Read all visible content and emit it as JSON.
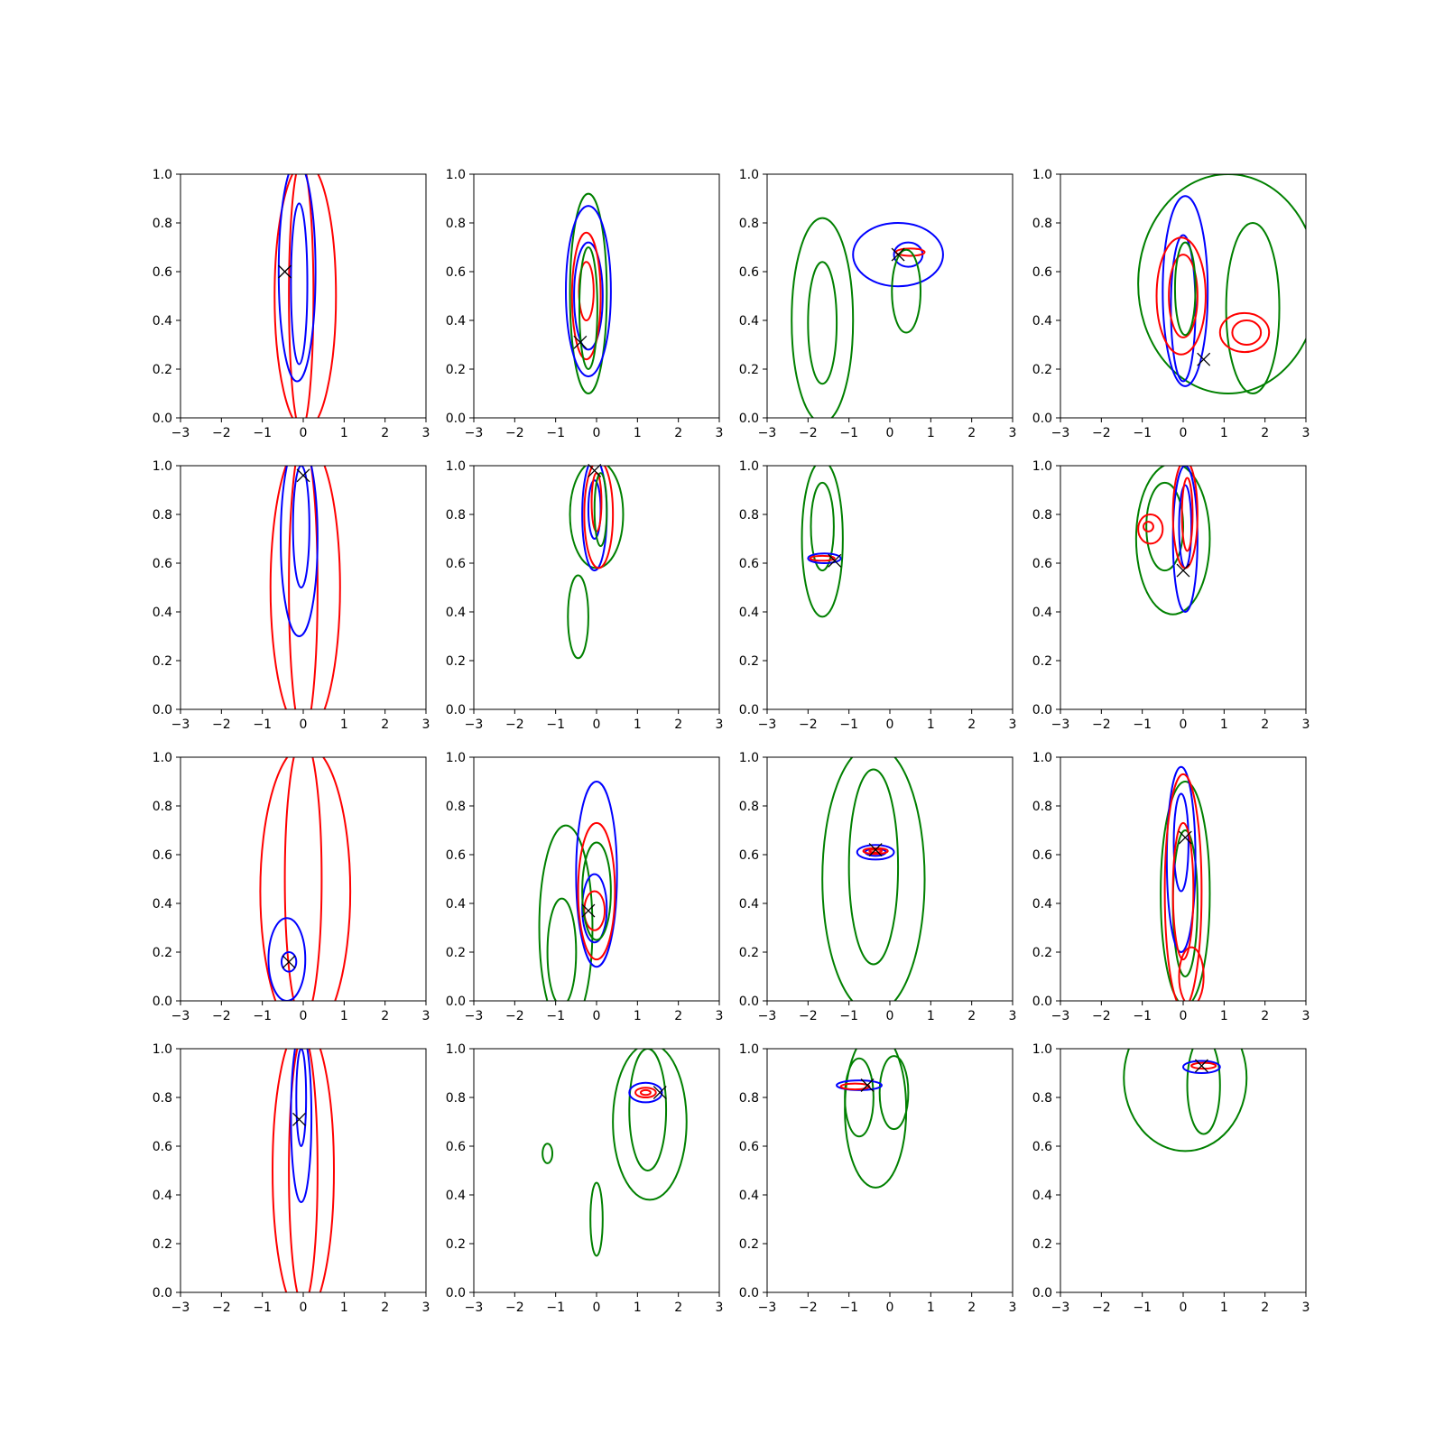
{
  "figure": {
    "grid": {
      "rows": 4,
      "cols": 4
    },
    "colors": {
      "red": "#ff0000",
      "blue": "#0000ff",
      "green": "#008000",
      "marker": "#000000",
      "axes": "#000000",
      "background": "#ffffff"
    },
    "axis_style": {
      "x_ticks": [
        "−3",
        "−2",
        "−1",
        "0",
        "1",
        "2",
        "3"
      ],
      "y_ticks": [
        "0.0",
        "0.2",
        "0.4",
        "0.6",
        "0.8",
        "1.0"
      ],
      "xlim": [
        -3,
        3
      ],
      "ylim": [
        0,
        1
      ],
      "grid": false
    }
  },
  "chart_data": [
    {
      "type": "contour",
      "xlim": [
        -3,
        3
      ],
      "ylim": [
        0,
        1
      ],
      "marker": [
        -0.45,
        0.6
      ],
      "contours": [
        {
          "color": "red",
          "cx": 0.05,
          "cy": 0.5,
          "rx": 0.75,
          "ry": 0.55
        },
        {
          "color": "red",
          "cx": -0.05,
          "cy": 0.5,
          "rx": 0.3,
          "ry": 0.55
        },
        {
          "color": "blue",
          "cx": -0.15,
          "cy": 0.6,
          "rx": 0.45,
          "ry": 0.45
        },
        {
          "color": "blue",
          "cx": -0.1,
          "cy": 0.55,
          "rx": 0.2,
          "ry": 0.33
        }
      ]
    },
    {
      "type": "contour",
      "xlim": [
        -3,
        3
      ],
      "ylim": [
        0,
        1
      ],
      "marker": [
        -0.4,
        0.31
      ],
      "contours": [
        {
          "color": "green",
          "cx": -0.2,
          "cy": 0.51,
          "rx": 0.45,
          "ry": 0.41
        },
        {
          "color": "blue",
          "cx": -0.2,
          "cy": 0.52,
          "rx": 0.55,
          "ry": 0.35
        },
        {
          "color": "blue",
          "cx": -0.2,
          "cy": 0.5,
          "rx": 0.35,
          "ry": 0.22
        },
        {
          "color": "red",
          "cx": -0.25,
          "cy": 0.5,
          "rx": 0.35,
          "ry": 0.26
        },
        {
          "color": "red",
          "cx": -0.25,
          "cy": 0.52,
          "rx": 0.18,
          "ry": 0.12
        },
        {
          "color": "green",
          "cx": -0.2,
          "cy": 0.45,
          "rx": 0.22,
          "ry": 0.25
        }
      ]
    },
    {
      "type": "contour",
      "xlim": [
        -3,
        3
      ],
      "ylim": [
        0,
        1
      ],
      "marker": [
        0.2,
        0.67
      ],
      "contours": [
        {
          "color": "green",
          "cx": -1.65,
          "cy": 0.4,
          "rx": 0.75,
          "ry": 0.42
        },
        {
          "color": "green",
          "cx": -1.65,
          "cy": 0.39,
          "rx": 0.35,
          "ry": 0.25
        },
        {
          "color": "blue",
          "cx": 0.2,
          "cy": 0.67,
          "rx": 1.1,
          "ry": 0.13
        },
        {
          "color": "blue",
          "cx": 0.45,
          "cy": 0.67,
          "rx": 0.35,
          "ry": 0.05
        },
        {
          "color": "red",
          "cx": 0.5,
          "cy": 0.68,
          "rx": 0.35,
          "ry": 0.015
        },
        {
          "color": "green",
          "cx": 0.4,
          "cy": 0.52,
          "rx": 0.35,
          "ry": 0.17
        }
      ]
    },
    {
      "type": "contour",
      "xlim": [
        -3,
        3
      ],
      "ylim": [
        0,
        1
      ],
      "marker": [
        0.5,
        0.24
      ],
      "contours": [
        {
          "color": "green",
          "cx": 1.1,
          "cy": 0.55,
          "rx": 2.2,
          "ry": 0.45
        },
        {
          "color": "green",
          "cx": 1.7,
          "cy": 0.45,
          "rx": 0.65,
          "ry": 0.35
        },
        {
          "color": "blue",
          "cx": 0.05,
          "cy": 0.52,
          "rx": 0.55,
          "ry": 0.39
        },
        {
          "color": "blue",
          "cx": 0.0,
          "cy": 0.45,
          "rx": 0.3,
          "ry": 0.3
        },
        {
          "color": "red",
          "cx": -0.05,
          "cy": 0.5,
          "rx": 0.6,
          "ry": 0.24
        },
        {
          "color": "red",
          "cx": 0.0,
          "cy": 0.5,
          "rx": 0.35,
          "ry": 0.17
        },
        {
          "color": "red",
          "cx": 1.5,
          "cy": 0.35,
          "rx": 0.6,
          "ry": 0.08
        },
        {
          "color": "red",
          "cx": 1.55,
          "cy": 0.35,
          "rx": 0.35,
          "ry": 0.05
        },
        {
          "color": "green",
          "cx": 0.05,
          "cy": 0.53,
          "rx": 0.25,
          "ry": 0.19
        }
      ]
    },
    {
      "type": "contour",
      "xlim": [
        -3,
        3
      ],
      "ylim": [
        0,
        1
      ],
      "marker": [
        0.0,
        0.96
      ],
      "contours": [
        {
          "color": "red",
          "cx": 0.05,
          "cy": 0.5,
          "rx": 0.85,
          "ry": 0.6
        },
        {
          "color": "red",
          "cx": 0.0,
          "cy": 0.5,
          "rx": 0.35,
          "ry": 0.6
        },
        {
          "color": "blue",
          "cx": -0.1,
          "cy": 0.7,
          "rx": 0.45,
          "ry": 0.4
        },
        {
          "color": "blue",
          "cx": -0.05,
          "cy": 0.75,
          "rx": 0.2,
          "ry": 0.25
        }
      ]
    },
    {
      "type": "contour",
      "xlim": [
        -3,
        3
      ],
      "ylim": [
        0,
        1
      ],
      "marker": [
        -0.05,
        0.98
      ],
      "contours": [
        {
          "color": "green",
          "cx": 0.0,
          "cy": 0.8,
          "rx": 0.65,
          "ry": 0.22
        },
        {
          "color": "green",
          "cx": -0.45,
          "cy": 0.38,
          "rx": 0.25,
          "ry": 0.17
        },
        {
          "color": "blue",
          "cx": -0.05,
          "cy": 0.8,
          "rx": 0.3,
          "ry": 0.23
        },
        {
          "color": "blue",
          "cx": -0.05,
          "cy": 0.82,
          "rx": 0.15,
          "ry": 0.12
        },
        {
          "color": "red",
          "cx": 0.05,
          "cy": 0.8,
          "rx": 0.35,
          "ry": 0.22
        },
        {
          "color": "red",
          "cx": 0.0,
          "cy": 0.85,
          "rx": 0.12,
          "ry": 0.12
        },
        {
          "color": "green",
          "cx": 0.1,
          "cy": 0.82,
          "rx": 0.15,
          "ry": 0.15
        }
      ]
    },
    {
      "type": "contour",
      "xlim": [
        -3,
        3
      ],
      "ylim": [
        0,
        1
      ],
      "marker": [
        -1.35,
        0.61
      ],
      "contours": [
        {
          "color": "green",
          "cx": -1.65,
          "cy": 0.7,
          "rx": 0.5,
          "ry": 0.32
        },
        {
          "color": "green",
          "cx": -1.65,
          "cy": 0.75,
          "rx": 0.28,
          "ry": 0.18
        },
        {
          "color": "blue",
          "cx": -1.6,
          "cy": 0.62,
          "rx": 0.4,
          "ry": 0.02
        },
        {
          "color": "red",
          "cx": -1.65,
          "cy": 0.62,
          "rx": 0.3,
          "ry": 0.01
        }
      ]
    },
    {
      "type": "contour",
      "xlim": [
        -3,
        3
      ],
      "ylim": [
        0,
        1
      ],
      "marker": [
        0.0,
        0.57
      ],
      "contours": [
        {
          "color": "green",
          "cx": -0.25,
          "cy": 0.7,
          "rx": 0.9,
          "ry": 0.31
        },
        {
          "color": "green",
          "cx": -0.45,
          "cy": 0.75,
          "rx": 0.45,
          "ry": 0.18
        },
        {
          "color": "blue",
          "cx": 0.05,
          "cy": 0.7,
          "rx": 0.3,
          "ry": 0.3
        },
        {
          "color": "blue",
          "cx": 0.05,
          "cy": 0.75,
          "rx": 0.15,
          "ry": 0.17
        },
        {
          "color": "red",
          "cx": 0.05,
          "cy": 0.8,
          "rx": 0.3,
          "ry": 0.22
        },
        {
          "color": "red",
          "cx": -0.8,
          "cy": 0.74,
          "rx": 0.3,
          "ry": 0.06
        },
        {
          "color": "red",
          "cx": -0.85,
          "cy": 0.75,
          "rx": 0.12,
          "ry": 0.02
        },
        {
          "color": "red",
          "cx": 0.1,
          "cy": 0.8,
          "rx": 0.13,
          "ry": 0.15
        }
      ]
    },
    {
      "type": "contour",
      "xlim": [
        -3,
        3
      ],
      "ylim": [
        0,
        1
      ],
      "marker": [
        -0.35,
        0.16
      ],
      "contours": [
        {
          "color": "red",
          "cx": 0.05,
          "cy": 0.45,
          "rx": 1.1,
          "ry": 0.6
        },
        {
          "color": "red",
          "cx": 0.0,
          "cy": 0.5,
          "rx": 0.45,
          "ry": 0.58
        },
        {
          "color": "blue",
          "cx": -0.4,
          "cy": 0.17,
          "rx": 0.45,
          "ry": 0.17
        },
        {
          "color": "blue",
          "cx": -0.35,
          "cy": 0.16,
          "rx": 0.18,
          "ry": 0.04
        }
      ]
    },
    {
      "type": "contour",
      "xlim": [
        -3,
        3
      ],
      "ylim": [
        0,
        1
      ],
      "marker": [
        -0.2,
        0.37
      ],
      "contours": [
        {
          "color": "green",
          "cx": -0.75,
          "cy": 0.3,
          "rx": 0.65,
          "ry": 0.42
        },
        {
          "color": "green",
          "cx": -0.85,
          "cy": 0.2,
          "rx": 0.35,
          "ry": 0.22
        },
        {
          "color": "blue",
          "cx": 0.0,
          "cy": 0.52,
          "rx": 0.5,
          "ry": 0.38
        },
        {
          "color": "blue",
          "cx": -0.05,
          "cy": 0.38,
          "rx": 0.3,
          "ry": 0.14
        },
        {
          "color": "red",
          "cx": 0.0,
          "cy": 0.45,
          "rx": 0.45,
          "ry": 0.28
        },
        {
          "color": "red",
          "cx": -0.05,
          "cy": 0.37,
          "rx": 0.25,
          "ry": 0.08
        },
        {
          "color": "green",
          "cx": 0.0,
          "cy": 0.45,
          "rx": 0.35,
          "ry": 0.2
        }
      ]
    },
    {
      "type": "contour",
      "xlim": [
        -3,
        3
      ],
      "ylim": [
        0,
        1
      ],
      "marker": [
        -0.35,
        0.62
      ],
      "contours": [
        {
          "color": "green",
          "cx": -0.4,
          "cy": 0.5,
          "rx": 1.25,
          "ry": 0.55
        },
        {
          "color": "green",
          "cx": -0.4,
          "cy": 0.55,
          "rx": 0.6,
          "ry": 0.4
        },
        {
          "color": "blue",
          "cx": -0.35,
          "cy": 0.61,
          "rx": 0.45,
          "ry": 0.03
        },
        {
          "color": "blue",
          "cx": -0.35,
          "cy": 0.61,
          "rx": 0.25,
          "ry": 0.015
        },
        {
          "color": "red",
          "cx": -0.35,
          "cy": 0.615,
          "rx": 0.3,
          "ry": 0.012
        },
        {
          "color": "red",
          "cx": -0.35,
          "cy": 0.615,
          "rx": 0.15,
          "ry": 0.006
        }
      ]
    },
    {
      "type": "contour",
      "xlim": [
        -3,
        3
      ],
      "ylim": [
        0,
        1
      ],
      "marker": [
        0.05,
        0.67
      ],
      "contours": [
        {
          "color": "green",
          "cx": 0.05,
          "cy": 0.44,
          "rx": 0.6,
          "ry": 0.46
        },
        {
          "color": "green",
          "cx": 0.05,
          "cy": 0.4,
          "rx": 0.3,
          "ry": 0.3
        },
        {
          "color": "blue",
          "cx": -0.05,
          "cy": 0.58,
          "rx": 0.35,
          "ry": 0.38
        },
        {
          "color": "blue",
          "cx": -0.05,
          "cy": 0.65,
          "rx": 0.18,
          "ry": 0.2
        },
        {
          "color": "red",
          "cx": 0.0,
          "cy": 0.45,
          "rx": 0.45,
          "ry": 0.48
        },
        {
          "color": "red",
          "cx": 0.0,
          "cy": 0.45,
          "rx": 0.25,
          "ry": 0.28
        },
        {
          "color": "red",
          "cx": 0.2,
          "cy": 0.1,
          "rx": 0.3,
          "ry": 0.12
        }
      ]
    },
    {
      "type": "contour",
      "xlim": [
        -3,
        3
      ],
      "ylim": [
        0,
        1
      ],
      "marker": [
        -0.1,
        0.71
      ],
      "contours": [
        {
          "color": "red",
          "cx": 0.0,
          "cy": 0.5,
          "rx": 0.75,
          "ry": 0.6
        },
        {
          "color": "red",
          "cx": 0.0,
          "cy": 0.5,
          "rx": 0.35,
          "ry": 0.55
        },
        {
          "color": "blue",
          "cx": -0.05,
          "cy": 0.72,
          "rx": 0.25,
          "ry": 0.35
        },
        {
          "color": "blue",
          "cx": -0.05,
          "cy": 0.8,
          "rx": 0.12,
          "ry": 0.2
        }
      ]
    },
    {
      "type": "contour",
      "xlim": [
        -3,
        3
      ],
      "ylim": [
        0,
        1
      ],
      "marker": [
        1.55,
        0.82
      ],
      "contours": [
        {
          "color": "green",
          "cx": 1.3,
          "cy": 0.7,
          "rx": 0.9,
          "ry": 0.32
        },
        {
          "color": "green",
          "cx": 1.25,
          "cy": 0.75,
          "rx": 0.45,
          "ry": 0.25
        },
        {
          "color": "green",
          "cx": -1.2,
          "cy": 0.57,
          "rx": 0.12,
          "ry": 0.04
        },
        {
          "color": "green",
          "cx": 0.0,
          "cy": 0.3,
          "rx": 0.15,
          "ry": 0.15
        },
        {
          "color": "blue",
          "cx": 1.2,
          "cy": 0.82,
          "rx": 0.4,
          "ry": 0.04
        },
        {
          "color": "red",
          "cx": 1.2,
          "cy": 0.82,
          "rx": 0.25,
          "ry": 0.02
        },
        {
          "color": "red",
          "cx": 1.2,
          "cy": 0.82,
          "rx": 0.12,
          "ry": 0.01
        }
      ]
    },
    {
      "type": "contour",
      "xlim": [
        -3,
        3
      ],
      "ylim": [
        0,
        1
      ],
      "marker": [
        -0.55,
        0.85
      ],
      "contours": [
        {
          "color": "green",
          "cx": -0.35,
          "cy": 0.75,
          "rx": 0.75,
          "ry": 0.32
        },
        {
          "color": "green",
          "cx": -0.75,
          "cy": 0.8,
          "rx": 0.35,
          "ry": 0.16
        },
        {
          "color": "green",
          "cx": 0.1,
          "cy": 0.82,
          "rx": 0.35,
          "ry": 0.15
        },
        {
          "color": "blue",
          "cx": -0.75,
          "cy": 0.85,
          "rx": 0.55,
          "ry": 0.02
        },
        {
          "color": "red",
          "cx": -0.85,
          "cy": 0.845,
          "rx": 0.35,
          "ry": 0.012
        }
      ]
    },
    {
      "type": "contour",
      "xlim": [
        -3,
        3
      ],
      "ylim": [
        0,
        1
      ],
      "marker": [
        0.45,
        0.93
      ],
      "contours": [
        {
          "color": "green",
          "cx": 0.05,
          "cy": 0.88,
          "rx": 1.5,
          "ry": 0.3
        },
        {
          "color": "green",
          "cx": 0.5,
          "cy": 0.85,
          "rx": 0.4,
          "ry": 0.2
        },
        {
          "color": "blue",
          "cx": 0.45,
          "cy": 0.925,
          "rx": 0.45,
          "ry": 0.025
        },
        {
          "color": "red",
          "cx": 0.5,
          "cy": 0.93,
          "rx": 0.3,
          "ry": 0.012
        }
      ]
    }
  ]
}
